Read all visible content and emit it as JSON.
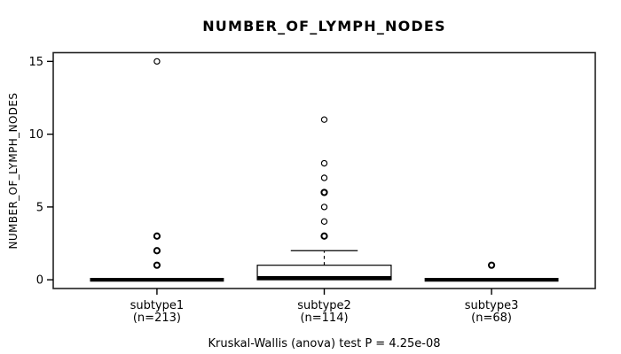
{
  "colors": {
    "foreground": "#000000",
    "background": "#ffffff",
    "frame": "#222222",
    "box_fill": "#ffffff"
  },
  "chart_data": {
    "type": "boxplot",
    "title": "NUMBER_OF_LYMPH_NODES",
    "ylabel": "NUMBER_OF_LYMPH_NODES",
    "xlabel": "",
    "caption": "Kruskal-Wallis (anova) test P = 4.25e-08",
    "p_value": "4.25e-08",
    "ylim": [
      0,
      15
    ],
    "yticks": [
      0,
      5,
      10,
      15
    ],
    "grid": false,
    "legend": "none",
    "groups": [
      {
        "label": "subtype1",
        "sublabel": "(n=213)",
        "n": 213,
        "whisker_low": 0,
        "q1": 0,
        "median": 0,
        "q3": 0,
        "whisker_high": 0,
        "outliers": [
          {
            "value": 1,
            "bold": true
          },
          {
            "value": 2,
            "bold": true
          },
          {
            "value": 3,
            "bold": true
          },
          {
            "value": 15,
            "bold": false
          }
        ]
      },
      {
        "label": "subtype2",
        "sublabel": "(n=114)",
        "n": 114,
        "whisker_low": 0,
        "q1": 0,
        "median": 0,
        "q3": 1,
        "whisker_high": 2,
        "outliers": [
          {
            "value": 3,
            "bold": true
          },
          {
            "value": 4,
            "bold": false
          },
          {
            "value": 5,
            "bold": false
          },
          {
            "value": 6,
            "bold": true
          },
          {
            "value": 7,
            "bold": false
          },
          {
            "value": 8,
            "bold": false
          },
          {
            "value": 11,
            "bold": false
          }
        ]
      },
      {
        "label": "subtype3",
        "sublabel": "(n=68)",
        "n": 68,
        "whisker_low": 0,
        "q1": 0,
        "median": 0,
        "q3": 0,
        "whisker_high": 0,
        "outliers": [
          {
            "value": 1,
            "bold": true
          }
        ]
      }
    ]
  }
}
